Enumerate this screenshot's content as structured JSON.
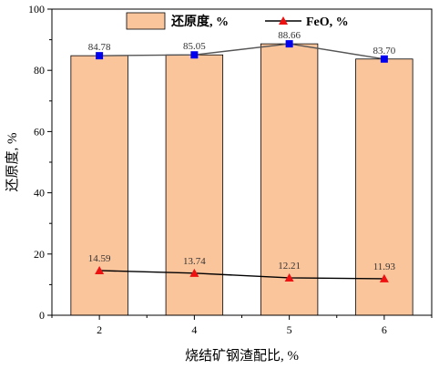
{
  "chart_data": {
    "type": "bar",
    "categories": [
      "2",
      "4",
      "5",
      "6"
    ],
    "xlabel": "烧结矿钢渣配比, %",
    "ylabel": "还原度, %",
    "ylim": [
      0,
      100
    ],
    "yticks": [
      "0",
      "20",
      "40",
      "60",
      "80",
      "100"
    ],
    "grid": false,
    "legend_position": "top",
    "series": [
      {
        "name": "还原度, %",
        "type": "bar",
        "values": [
          84.78,
          85.05,
          88.66,
          83.7
        ],
        "labels": [
          "84.78",
          "85.05",
          "88.66",
          "83.70"
        ],
        "color": "#fbc59c",
        "edge_color": "#000000",
        "line_color": "#555555",
        "marker": "square",
        "marker_color": "#0000ee"
      },
      {
        "name": "FeO, %",
        "type": "line",
        "values": [
          14.59,
          13.74,
          12.21,
          11.93
        ],
        "labels": [
          "14.59",
          "13.74",
          "12.21",
          "11.93"
        ],
        "color": "#000000",
        "marker": "triangle",
        "marker_color": "#ee1111"
      }
    ]
  }
}
